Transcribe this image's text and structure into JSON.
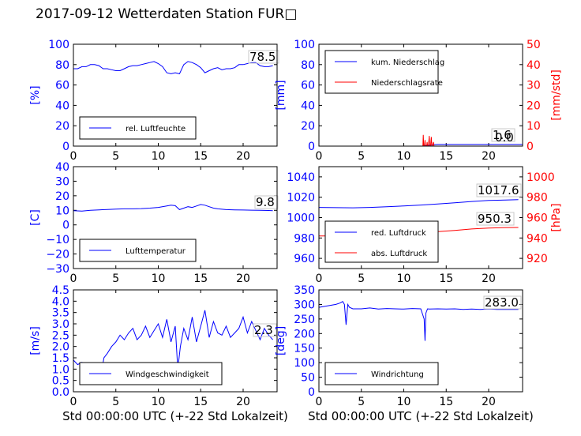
{
  "title": "2017-09-12 Wetterdaten Station FUR\u0000",
  "title_display": "2017-09-12 Wetterdaten Station FUR□",
  "colors": {
    "primary": "#0000ff",
    "secondary": "#ff0000",
    "axis": "#000000",
    "legend_border": "#000000",
    "last_value_box": "#c8c8c8"
  },
  "chart_data": [
    {
      "id": "humidity",
      "type": "line",
      "xlim": [
        0,
        24
      ],
      "ylim": [
        0,
        100
      ],
      "xticks": [
        "0",
        "5",
        "10",
        "15",
        "20"
      ],
      "yticks": [
        "0",
        "20",
        "40",
        "60",
        "80",
        "100"
      ],
      "ylabel": "[%]",
      "last_value": "78.5",
      "legend": [
        {
          "name": "rel. Luftfeuchte",
          "color": "#0000ff"
        }
      ],
      "series": [
        {
          "name": "rel. Luftfeuchte",
          "axis": "left",
          "color": "#0000ff",
          "x": [
            0,
            0.5,
            1,
            1.5,
            2,
            2.5,
            3,
            3.5,
            4,
            4.5,
            5,
            5.5,
            6,
            6.5,
            7,
            7.5,
            8,
            8.5,
            9,
            9.5,
            10,
            10.5,
            11,
            11.5,
            12,
            12.5,
            13,
            13.5,
            14,
            14.5,
            15,
            15.5,
            16,
            16.5,
            17,
            17.5,
            18,
            18.5,
            19,
            19.5,
            20,
            20.5,
            21,
            21.5,
            22,
            22.5,
            23,
            23.5
          ],
          "y": [
            76,
            76,
            78,
            78,
            80,
            80,
            79,
            76,
            76,
            75,
            74,
            74,
            76,
            78,
            79,
            79,
            80,
            81,
            82,
            83,
            81,
            78,
            72,
            71,
            72,
            71,
            80,
            83,
            82,
            80,
            77,
            72,
            74,
            76,
            77,
            75,
            76,
            76,
            77,
            80,
            80,
            81,
            82,
            82,
            79,
            78,
            78,
            79
          ]
        }
      ]
    },
    {
      "id": "precipitation",
      "type": "line",
      "xlim": [
        0,
        24
      ],
      "ylim": [
        0,
        100
      ],
      "y2lim": [
        0,
        50
      ],
      "xticks": [
        "0",
        "5",
        "10",
        "15",
        "20"
      ],
      "yticks": [
        "0",
        "20",
        "40",
        "60",
        "80",
        "100"
      ],
      "y2ticks": [
        "0",
        "10",
        "20",
        "30",
        "40",
        "50"
      ],
      "ylabel": "[mm]",
      "y2label": "[mm/std]",
      "last_values": [
        "1.6",
        "0.0"
      ],
      "legend": [
        {
          "name": "kum. Niederschlag",
          "color": "#0000ff"
        },
        {
          "name": "Niederschlagsrate",
          "color": "#ff0000"
        }
      ],
      "series": [
        {
          "name": "kum. Niederschlag",
          "axis": "left",
          "color": "#0000ff",
          "x": [
            0,
            12.3,
            12.5,
            13,
            13.5,
            14,
            24
          ],
          "y": [
            0,
            0,
            0.5,
            1.0,
            1.4,
            1.6,
            1.6
          ]
        },
        {
          "name": "Niederschlagsrate",
          "axis": "right",
          "color": "#ff0000",
          "x": [
            0,
            12.25,
            12.3,
            12.35,
            12.45,
            12.5,
            12.55,
            12.7,
            12.75,
            12.8,
            12.9,
            13.0,
            13.05,
            13.15,
            13.25,
            13.3,
            13.35,
            13.5,
            13.55,
            24
          ],
          "y": [
            0,
            0,
            5.5,
            0,
            0,
            3,
            0,
            0,
            2,
            0,
            0,
            5,
            0,
            0,
            4.5,
            0,
            0,
            2,
            0,
            0
          ]
        }
      ]
    },
    {
      "id": "temperature",
      "type": "line",
      "xlim": [
        0,
        24
      ],
      "ylim": [
        -30,
        40
      ],
      "xticks": [
        "0",
        "5",
        "10",
        "15",
        "20"
      ],
      "yticks": [
        "−30",
        "−20",
        "−10",
        "0",
        "10",
        "20",
        "30",
        "40"
      ],
      "ylabel": "[C]",
      "last_value": "9.8",
      "legend": [
        {
          "name": "Lufttemperatur",
          "color": "#0000ff"
        }
      ],
      "series": [
        {
          "name": "Lufttemperatur",
          "axis": "left",
          "color": "#0000ff",
          "x": [
            0,
            1,
            2,
            3,
            4,
            5,
            6,
            7,
            8,
            9,
            10,
            11,
            11.5,
            12,
            12.5,
            13,
            13.5,
            14,
            14.5,
            15,
            15.5,
            16,
            16.5,
            17,
            18,
            19,
            20,
            21,
            22,
            23,
            23.5
          ],
          "y": [
            9.8,
            9.5,
            10,
            10.3,
            10.6,
            10.8,
            11,
            11,
            11.2,
            11.5,
            12,
            13,
            13.5,
            13.2,
            10.5,
            11.5,
            12.5,
            12,
            13,
            14,
            13.5,
            12.5,
            11.5,
            11,
            10.5,
            10.3,
            10.2,
            10.1,
            10,
            9.9,
            9.8
          ]
        }
      ]
    },
    {
      "id": "pressure",
      "type": "line",
      "xlim": [
        0,
        24
      ],
      "ylim": [
        950,
        1050
      ],
      "y2lim": [
        910,
        1010
      ],
      "xticks": [
        "0",
        "5",
        "10",
        "15",
        "20"
      ],
      "yticks": [
        "960",
        "980",
        "1000",
        "1020",
        "1040"
      ],
      "y2ticks": [
        "920",
        "940",
        "960",
        "980",
        "1000"
      ],
      "y2label": "[hPa]",
      "last_values": [
        "1017.6",
        "950.3"
      ],
      "legend": [
        {
          "name": "red. Luftdruck",
          "color": "#0000ff"
        },
        {
          "name": "abs. Luftdruck",
          "color": "#ff0000"
        }
      ],
      "series": [
        {
          "name": "red. Luftdruck",
          "axis": "left",
          "color": "#0000ff",
          "x": [
            0,
            2,
            4,
            6,
            8,
            10,
            12,
            14,
            16,
            18,
            20,
            22,
            23.5
          ],
          "y": [
            1010,
            1009.8,
            1009.6,
            1010,
            1010.6,
            1011.5,
            1012.3,
            1013.3,
            1014.5,
            1015.8,
            1016.8,
            1017.3,
            1017.6
          ]
        },
        {
          "name": "abs. Luftdruck",
          "axis": "right",
          "color": "#ff0000",
          "x": [
            0,
            2,
            4,
            6,
            8,
            10,
            12,
            14,
            16,
            18,
            20,
            22,
            23.5
          ],
          "y": [
            942,
            942,
            942.2,
            942.6,
            943.3,
            944.2,
            945.0,
            946.2,
            947.4,
            948.8,
            949.8,
            950.2,
            950.3
          ]
        }
      ]
    },
    {
      "id": "windspeed",
      "type": "line",
      "xlim": [
        0,
        24
      ],
      "ylim": [
        0,
        4.5
      ],
      "xticks": [
        "0",
        "5",
        "10",
        "15",
        "20"
      ],
      "yticks": [
        "0.0",
        "0.5",
        "1.0",
        "1.5",
        "2.0",
        "2.5",
        "3.0",
        "3.5",
        "4.0",
        "4.5"
      ],
      "ylabel": "[m/s]",
      "last_value": "2.3",
      "legend": [
        {
          "name": "Windgeschwindigkeit",
          "color": "#0000ff"
        }
      ],
      "series": [
        {
          "name": "Windgeschwindigkeit",
          "axis": "left",
          "color": "#0000ff",
          "x": [
            0,
            0.5,
            1,
            1.5,
            2,
            2.5,
            3,
            3.3,
            3.6,
            4,
            4.5,
            5,
            5.5,
            6,
            6.5,
            7,
            7.5,
            8,
            8.5,
            9,
            9.5,
            10,
            10.5,
            11,
            11.5,
            12,
            12.3,
            12.6,
            13,
            13.5,
            14,
            14.5,
            15,
            15.5,
            16,
            16.5,
            17,
            17.5,
            18,
            18.5,
            19,
            19.5,
            20,
            20.5,
            21,
            21.5,
            22,
            22.5,
            23,
            23.5
          ],
          "y": [
            1.4,
            1.2,
            1.3,
            0.9,
            1.0,
            0.6,
            0.4,
            0.9,
            1.5,
            1.7,
            2.0,
            2.2,
            2.5,
            2.3,
            2.6,
            2.8,
            2.3,
            2.5,
            2.9,
            2.4,
            2.7,
            3.0,
            2.4,
            3.2,
            2.2,
            2.9,
            1.0,
            2.0,
            2.8,
            2.3,
            3.3,
            2.2,
            2.9,
            3.6,
            2.4,
            3.1,
            2.6,
            2.5,
            2.9,
            2.4,
            2.6,
            2.8,
            3.3,
            2.6,
            3.1,
            2.7,
            2.3,
            2.8,
            2.5,
            2.3
          ]
        }
      ]
    },
    {
      "id": "winddirection",
      "type": "line",
      "xlim": [
        0,
        24
      ],
      "ylim": [
        0,
        350
      ],
      "xticks": [
        "0",
        "5",
        "10",
        "15",
        "20"
      ],
      "yticks": [
        "0",
        "50",
        "100",
        "150",
        "200",
        "250",
        "300",
        "350"
      ],
      "ylabel": "[deg]",
      "last_value": "283.0",
      "legend": [
        {
          "name": "Windrichtung",
          "color": "#0000ff"
        }
      ],
      "series": [
        {
          "name": "Windrichtung",
          "axis": "left",
          "color": "#0000ff",
          "x": [
            0,
            1,
            2,
            2.5,
            2.8,
            3,
            3.2,
            3.4,
            3.6,
            4,
            5,
            6,
            7,
            8,
            9,
            10,
            11,
            12,
            12.4,
            12.5,
            12.6,
            12.8,
            13,
            14,
            15,
            16,
            17,
            18,
            19,
            20,
            21,
            22,
            23,
            23.5
          ],
          "y": [
            290,
            295,
            300,
            305,
            310,
            300,
            230,
            300,
            290,
            285,
            285,
            288,
            284,
            286,
            285,
            284,
            286,
            285,
            250,
            175,
            270,
            285,
            284,
            285,
            284,
            285,
            283,
            284,
            283,
            284,
            283,
            283,
            283,
            283
          ]
        }
      ]
    }
  ],
  "shared_xlabel": "Std 00:00:00 UTC (+-22 Std Lokalzeit)"
}
